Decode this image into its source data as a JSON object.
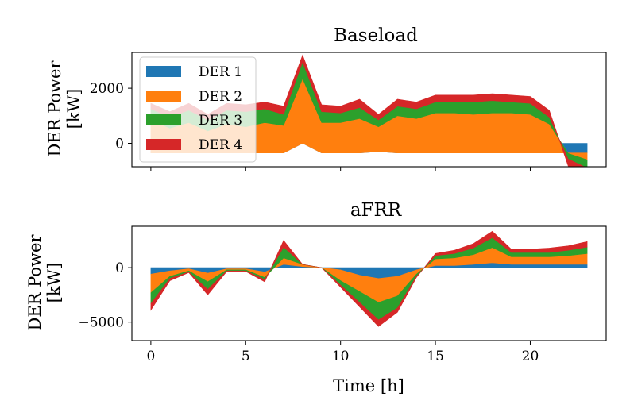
{
  "colors": {
    "der1": "#1f77b4",
    "der2": "#ff7f0e",
    "der3": "#2ca02c",
    "der4": "#d62728"
  },
  "chart_data": [
    {
      "type": "area",
      "title": "Baseload",
      "ylabel_line1": "DER Power",
      "ylabel_line2": "[kW]",
      "xlabel": "",
      "x": [
        0,
        1,
        2,
        3,
        4,
        5,
        6,
        7,
        8,
        9,
        10,
        11,
        12,
        13,
        14,
        15,
        16,
        17,
        18,
        19,
        20,
        21,
        22,
        23
      ],
      "xlim": [
        -1,
        24
      ],
      "ylim": [
        -850,
        3300
      ],
      "yticks": [
        0,
        2000
      ],
      "ytick_labels": [
        "0",
        "2000"
      ],
      "legend": {
        "position": "upper-left",
        "entries": [
          "DER 1",
          "DER 2",
          "DER 3",
          "DER 4"
        ]
      },
      "series": [
        {
          "name": "DER 1",
          "values": [
            -350,
            -350,
            -350,
            -350,
            -350,
            -350,
            -350,
            -350,
            0,
            -350,
            -350,
            -350,
            -300,
            -350,
            -350,
            -350,
            -350,
            -350,
            -350,
            -350,
            -350,
            -350,
            -350,
            -350
          ]
        },
        {
          "name": "DER 2",
          "values": [
            1200,
            900,
            1100,
            800,
            1050,
            950,
            1100,
            1000,
            2350,
            1100,
            1100,
            1250,
            900,
            1350,
            1250,
            1450,
            1450,
            1400,
            1450,
            1450,
            1400,
            1050,
            -20,
            -250
          ]
        },
        {
          "name": "DER 3",
          "values": [
            400,
            400,
            450,
            400,
            500,
            550,
            500,
            400,
            600,
            400,
            350,
            400,
            250,
            350,
            350,
            400,
            400,
            450,
            450,
            400,
            400,
            250,
            -200,
            -300
          ]
        },
        {
          "name": "DER 4",
          "values": [
            200,
            200,
            250,
            200,
            250,
            250,
            250,
            300,
            250,
            250,
            250,
            300,
            200,
            250,
            250,
            250,
            250,
            250,
            250,
            250,
            250,
            250,
            -250,
            -350
          ]
        }
      ]
    },
    {
      "type": "area",
      "title": "aFRR",
      "ylabel_line1": "DER Power",
      "ylabel_line2": "[kW]",
      "xlabel": "Time [h]",
      "x": [
        0,
        1,
        2,
        3,
        4,
        5,
        6,
        7,
        8,
        9,
        10,
        11,
        12,
        13,
        14,
        15,
        16,
        17,
        18,
        19,
        20,
        21,
        22,
        23
      ],
      "xlim": [
        -1,
        24
      ],
      "ylim": [
        -6700,
        3800
      ],
      "yticks": [
        -5000,
        0
      ],
      "ytick_labels": [
        "−5000",
        "0"
      ],
      "xticks": [
        0,
        5,
        10,
        15,
        20
      ],
      "xtick_labels": [
        "0",
        "5",
        "10",
        "15",
        "20"
      ],
      "series": [
        {
          "name": "DER 1",
          "values": [
            -600,
            -300,
            -100,
            -500,
            -100,
            -100,
            -400,
            300,
            100,
            0,
            -200,
            -700,
            -1000,
            -800,
            -200,
            200,
            200,
            300,
            450,
            300,
            300,
            300,
            300,
            300
          ]
        },
        {
          "name": "DER 2",
          "values": [
            -1700,
            -500,
            -200,
            -800,
            -100,
            -100,
            -500,
            600,
            200,
            0,
            -1000,
            -1500,
            -2200,
            -1800,
            -400,
            600,
            700,
            900,
            1400,
            700,
            700,
            700,
            800,
            1000
          ]
        },
        {
          "name": "DER 3",
          "values": [
            -1000,
            -200,
            -100,
            -700,
            -100,
            -100,
            -200,
            1000,
            0,
            0,
            -400,
            -1000,
            -1600,
            -1100,
            -200,
            300,
            400,
            600,
            900,
            400,
            400,
            400,
            500,
            600
          ]
        },
        {
          "name": "DER 4",
          "values": [
            -600,
            -200,
            -50,
            -500,
            -50,
            -50,
            -200,
            600,
            0,
            0,
            -200,
            -400,
            -600,
            -400,
            -100,
            200,
            300,
            400,
            600,
            300,
            300,
            400,
            400,
            500
          ]
        }
      ]
    }
  ]
}
